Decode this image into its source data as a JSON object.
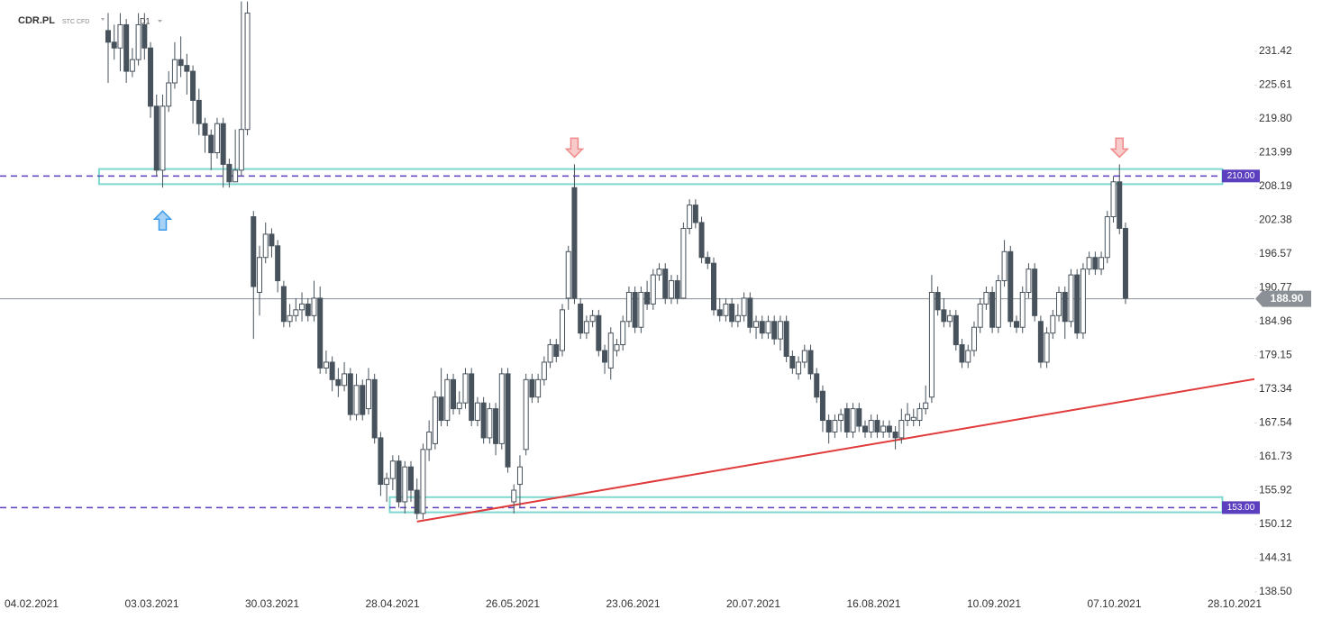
{
  "header": {
    "symbol": "CDR.PL",
    "instrument": "STC CFD",
    "timeframe": "D1"
  },
  "chart_data": {
    "type": "candlestick",
    "colors": {
      "up": "#ffffff",
      "down": "#47525c",
      "wick": "#47525c"
    },
    "ohlc": [
      [
        235,
        238,
        226,
        233
      ],
      [
        233,
        236,
        230,
        232
      ],
      [
        232,
        238,
        228,
        236
      ],
      [
        236,
        237,
        226,
        228
      ],
      [
        228,
        232,
        227,
        230
      ],
      [
        230,
        238,
        229,
        236
      ],
      [
        236,
        238,
        230,
        232
      ],
      [
        232,
        233,
        220,
        222
      ],
      [
        222,
        224,
        210,
        211
      ],
      [
        211,
        224,
        208,
        222
      ],
      [
        222,
        228,
        221,
        226
      ],
      [
        226,
        233,
        225,
        230
      ],
      [
        230,
        234,
        227,
        229
      ],
      [
        229,
        231,
        224,
        228
      ],
      [
        228,
        229,
        219,
        223
      ],
      [
        223,
        225,
        217,
        219
      ],
      [
        219,
        220,
        214,
        217
      ],
      [
        217,
        218,
        211,
        214
      ],
      [
        214,
        220,
        213,
        219
      ],
      [
        219,
        220,
        208,
        212
      ],
      [
        212,
        213,
        208,
        209
      ],
      [
        209,
        218,
        209,
        211
      ],
      [
        211,
        240,
        210,
        218
      ],
      [
        218,
        240,
        217,
        238
      ],
      [
        203,
        204,
        182,
        191
      ],
      [
        190,
        198,
        186,
        196
      ],
      [
        196,
        202,
        195,
        200
      ],
      [
        200,
        201,
        196,
        198
      ],
      [
        198,
        199,
        190,
        192
      ],
      [
        191,
        192,
        184,
        185
      ],
      [
        185,
        188,
        184,
        186
      ],
      [
        186,
        189,
        185,
        187
      ],
      [
        187,
        190,
        185,
        188
      ],
      [
        188,
        189,
        185,
        186
      ],
      [
        186,
        192,
        185,
        189
      ],
      [
        189,
        191,
        176,
        177
      ],
      [
        177,
        180,
        176,
        178
      ],
      [
        178,
        179,
        173,
        175
      ],
      [
        175,
        177,
        172,
        174
      ],
      [
        174,
        178,
        173,
        176
      ],
      [
        176,
        177,
        168,
        169
      ],
      [
        169,
        176,
        168,
        174
      ],
      [
        174,
        175,
        168,
        169
      ],
      [
        170,
        177,
        169,
        175
      ],
      [
        175,
        176,
        164,
        165
      ],
      [
        165,
        166,
        155,
        157
      ],
      [
        157,
        159,
        154,
        158
      ],
      [
        158,
        162,
        156,
        161
      ],
      [
        161,
        162,
        153,
        154
      ],
      [
        154,
        161,
        152,
        160
      ],
      [
        160,
        161,
        154,
        156
      ],
      [
        156,
        158,
        151,
        152
      ],
      [
        152,
        164,
        151,
        163
      ],
      [
        163,
        168,
        161,
        166
      ],
      [
        164,
        173,
        163,
        172
      ],
      [
        172,
        177,
        167,
        168
      ],
      [
        168,
        176,
        167,
        175
      ],
      [
        175,
        176,
        169,
        170
      ],
      [
        170,
        173,
        169,
        171
      ],
      [
        171,
        177,
        170,
        176
      ],
      [
        176,
        177,
        167,
        168
      ],
      [
        168,
        172,
        167,
        171
      ],
      [
        171,
        172,
        164,
        165
      ],
      [
        165,
        171,
        164,
        170
      ],
      [
        170,
        171,
        162,
        164
      ],
      [
        164,
        177,
        163,
        176
      ],
      [
        176,
        177,
        159,
        160
      ],
      [
        154,
        157,
        152,
        156
      ],
      [
        157,
        162,
        153,
        160
      ],
      [
        163,
        176,
        162,
        175
      ],
      [
        175,
        176,
        171,
        172
      ],
      [
        172,
        176,
        171,
        175
      ],
      [
        175,
        179,
        174,
        178
      ],
      [
        178,
        182,
        177,
        181
      ],
      [
        181,
        182,
        178,
        179
      ],
      [
        180,
        188,
        179,
        187
      ],
      [
        189,
        198,
        187,
        197
      ],
      [
        208,
        212,
        188,
        189
      ],
      [
        188,
        189,
        182,
        183
      ],
      [
        183,
        186,
        182,
        185
      ],
      [
        185,
        187,
        184,
        186
      ],
      [
        186,
        187,
        179,
        180
      ],
      [
        180,
        181,
        176,
        178
      ],
      [
        177,
        184,
        175,
        183
      ],
      [
        180,
        182,
        179,
        181
      ],
      [
        181,
        186,
        180,
        185
      ],
      [
        185,
        191,
        184,
        190
      ],
      [
        190,
        191,
        183,
        184
      ],
      [
        184,
        191,
        183,
        190
      ],
      [
        190,
        192,
        187,
        188
      ],
      [
        188,
        194,
        187,
        193
      ],
      [
        193,
        195,
        192,
        194
      ],
      [
        194,
        195,
        188,
        189
      ],
      [
        189,
        193,
        188,
        192
      ],
      [
        192,
        193,
        188,
        189
      ],
      [
        189,
        202,
        189,
        201
      ],
      [
        201,
        206,
        200,
        205
      ],
      [
        205,
        206,
        201,
        202
      ],
      [
        202,
        203,
        195,
        196
      ],
      [
        196,
        197,
        194,
        195
      ],
      [
        195,
        196,
        186,
        187
      ],
      [
        187,
        189,
        185,
        186
      ],
      [
        186,
        189,
        185,
        188
      ],
      [
        188,
        189,
        184,
        185
      ],
      [
        185,
        188,
        184,
        186
      ],
      [
        186,
        190,
        185,
        189
      ],
      [
        189,
        190,
        183,
        184
      ],
      [
        184,
        186,
        182,
        185
      ],
      [
        185,
        186,
        182,
        183
      ],
      [
        183,
        186,
        182,
        185
      ],
      [
        185,
        186,
        181,
        182
      ],
      [
        182,
        186,
        180,
        185
      ],
      [
        185,
        186,
        178,
        179
      ],
      [
        179,
        180,
        176,
        177
      ],
      [
        176,
        179,
        175,
        178
      ],
      [
        178,
        181,
        177,
        180
      ],
      [
        180,
        181,
        175,
        176
      ],
      [
        176,
        177,
        171,
        172
      ],
      [
        173,
        174,
        166,
        168
      ],
      [
        168,
        169,
        164,
        166
      ],
      [
        166,
        169,
        165,
        168
      ],
      [
        168,
        170,
        166,
        169
      ],
      [
        170,
        171,
        165,
        166
      ],
      [
        166,
        171,
        165,
        170
      ],
      [
        170,
        171,
        166,
        167
      ],
      [
        167,
        168,
        165,
        166
      ],
      [
        166,
        169,
        165,
        168
      ],
      [
        168,
        169,
        165,
        166
      ],
      [
        166,
        168,
        165,
        167
      ],
      [
        167,
        168,
        165,
        166
      ],
      [
        166,
        167,
        163,
        165
      ],
      [
        165,
        170,
        164,
        168
      ],
      [
        168,
        171,
        167,
        169
      ],
      [
        168,
        170,
        167,
        168.5
      ],
      [
        168,
        171,
        167,
        170
      ],
      [
        170,
        174,
        169,
        171
      ],
      [
        172,
        193,
        171,
        190
      ],
      [
        190,
        191,
        186,
        187
      ],
      [
        187,
        189,
        184,
        185
      ],
      [
        185,
        187,
        184,
        186
      ],
      [
        186,
        187,
        180,
        181
      ],
      [
        181,
        182,
        177,
        178
      ],
      [
        178,
        181,
        177,
        180
      ],
      [
        180,
        185,
        179,
        184
      ],
      [
        184,
        189,
        183,
        188
      ],
      [
        188,
        191,
        187,
        190
      ],
      [
        190,
        191,
        183,
        184
      ],
      [
        184,
        193,
        183,
        192
      ],
      [
        192,
        199,
        191,
        197
      ],
      [
        197,
        198,
        184,
        185
      ],
      [
        185,
        186,
        183,
        184
      ],
      [
        184,
        191,
        183,
        190
      ],
      [
        190,
        195,
        189,
        194
      ],
      [
        194,
        195,
        185,
        186
      ],
      [
        185,
        186,
        177,
        178
      ],
      [
        178,
        184,
        177,
        183
      ],
      [
        183,
        187,
        182,
        186
      ],
      [
        186,
        191,
        185,
        190
      ],
      [
        190,
        191,
        182,
        185
      ],
      [
        185,
        194,
        184,
        193
      ],
      [
        193,
        194,
        182,
        183
      ],
      [
        183,
        195,
        182,
        194
      ],
      [
        194,
        197,
        193,
        196
      ],
      [
        196,
        197,
        193,
        194
      ],
      [
        194,
        197,
        193,
        196
      ],
      [
        196,
        204,
        195,
        203
      ],
      [
        203,
        210,
        202,
        209
      ],
      [
        209,
        212,
        200,
        201
      ],
      [
        201,
        202,
        188,
        189
      ]
    ],
    "ylim": [
      138.04,
      240.25
    ],
    "yticks": [
      231.42,
      225.61,
      {
        "value": 219.8,
        "label": "219.80"
      },
      213.99,
      208.19,
      202.38,
      196.57,
      190.77,
      184.96,
      179.15,
      173.34,
      167.54,
      161.73,
      155.92,
      150.12,
      144.31,
      {
        "value": 138.5,
        "label": "138.50"
      }
    ],
    "xticks": [
      "04.02.2021",
      "03.03.2021",
      "30.03.2021",
      "28.04.2021",
      "26.05.2021",
      "23.06.2021",
      "20.07.2021",
      "16.08.2021",
      "10.09.2021",
      "07.10.2021",
      "28.10.2021"
    ],
    "levels": [
      {
        "value": 210,
        "label": "210.00",
        "color": "#5b3fbf"
      },
      {
        "value": 153,
        "label": "153.00",
        "color": "#5b3fbf"
      }
    ],
    "last_price": {
      "value": 188.9,
      "label": "188.90",
      "color": "#8a9096"
    },
    "zones": [
      {
        "x": [
          -1.5,
          184
        ],
        "y": [
          208.6,
          211.2
        ],
        "color": "#7fd8cf"
      },
      {
        "x": [
          46.5,
          184
        ],
        "y": [
          152.2,
          154.8
        ],
        "color": "#7fd8cf"
      }
    ],
    "trendline": {
      "x": [
        51,
        190.5
      ],
      "y": [
        150.6,
        175.3
      ],
      "color": "#e03a3a"
    },
    "signals": [
      {
        "index": 9,
        "direction": "up",
        "color": "#3d9be9"
      },
      {
        "index": 77,
        "direction": "down",
        "color": "#f08a8a"
      },
      {
        "index": 167,
        "direction": "down",
        "color": "#f08a8a"
      }
    ]
  }
}
